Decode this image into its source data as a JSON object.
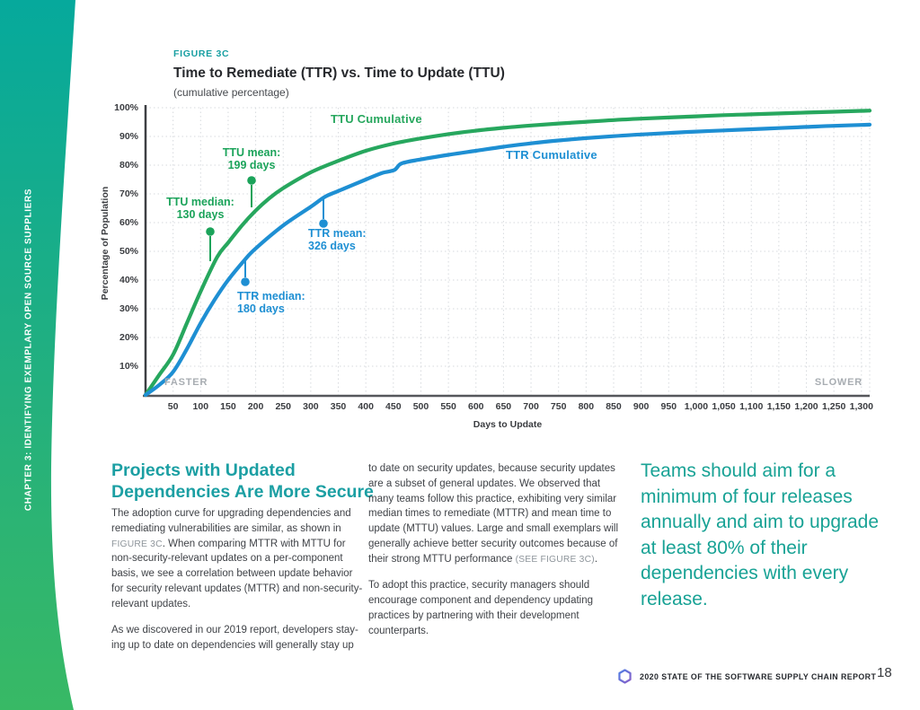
{
  "sidebar": {
    "chapter_label": "CHAPTER 3: IDENTIFYING EXEMPLARY OPEN SOURCE SUPPLIERS",
    "gradient_top": "#06a99c",
    "gradient_bottom": "#38b965"
  },
  "figure": {
    "eyebrow": "FIGURE 3C",
    "title": "Time to Remediate (TTR) vs. Time to Update (TTU)",
    "subtitle": "(cumulative percentage)"
  },
  "chart_data": {
    "type": "line",
    "title": "Time to Remediate (TTR) vs. Time to Update (TTU)",
    "subtitle": "(cumulative percentage)",
    "xlabel": "Days to Update",
    "ylabel": "Percentage of Population",
    "xlim": [
      0,
      1315
    ],
    "ylim": [
      0,
      100
    ],
    "grid": true,
    "x_ticks": [
      "50",
      "100",
      "150",
      "200",
      "250",
      "300",
      "350",
      "400",
      "450",
      "500",
      "550",
      "600",
      "650",
      "700",
      "750",
      "800",
      "850",
      "900",
      "950",
      "1,000",
      "1,050",
      "1,100",
      "1,150",
      "1,200",
      "1,250",
      "1,300"
    ],
    "y_ticks": [
      "10%",
      "20%",
      "30%",
      "40%",
      "50%",
      "60%",
      "70%",
      "80%",
      "90%",
      "100%"
    ],
    "corner_labels": {
      "left": "FASTER",
      "right": "SLOWER"
    },
    "series": [
      {
        "id": "ttu",
        "name": "TTU Cumulative",
        "color": "#27a75e",
        "points": [
          [
            0,
            0
          ],
          [
            25,
            7
          ],
          [
            50,
            14
          ],
          [
            75,
            25
          ],
          [
            100,
            36
          ],
          [
            130,
            48
          ],
          [
            150,
            53
          ],
          [
            175,
            59
          ],
          [
            199,
            64
          ],
          [
            225,
            68.5
          ],
          [
            250,
            72
          ],
          [
            300,
            77.5
          ],
          [
            350,
            81.5
          ],
          [
            400,
            85
          ],
          [
            450,
            87.5
          ],
          [
            500,
            89.3
          ],
          [
            550,
            90.8
          ],
          [
            600,
            92
          ],
          [
            650,
            93
          ],
          [
            700,
            93.8
          ],
          [
            750,
            94.5
          ],
          [
            800,
            95.1
          ],
          [
            850,
            95.7
          ],
          [
            900,
            96.2
          ],
          [
            950,
            96.6
          ],
          [
            1000,
            97
          ],
          [
            1050,
            97.4
          ],
          [
            1100,
            97.7
          ],
          [
            1150,
            98
          ],
          [
            1200,
            98.3
          ],
          [
            1250,
            98.6
          ],
          [
            1300,
            98.9
          ],
          [
            1315,
            99
          ]
        ]
      },
      {
        "id": "ttr",
        "name": "TTR Cumulative",
        "color": "#1e8fd3",
        "points": [
          [
            0,
            0
          ],
          [
            25,
            3.5
          ],
          [
            50,
            8
          ],
          [
            75,
            16
          ],
          [
            100,
            25
          ],
          [
            125,
            33
          ],
          [
            150,
            40
          ],
          [
            180,
            47
          ],
          [
            200,
            51
          ],
          [
            250,
            59
          ],
          [
            300,
            65.5
          ],
          [
            326,
            69
          ],
          [
            350,
            71
          ],
          [
            400,
            75
          ],
          [
            430,
            77.3
          ],
          [
            452,
            78.3
          ],
          [
            465,
            80.6
          ],
          [
            500,
            82
          ],
          [
            550,
            83.6
          ],
          [
            600,
            85
          ],
          [
            650,
            86.4
          ],
          [
            700,
            87.6
          ],
          [
            750,
            88.6
          ],
          [
            800,
            89.4
          ],
          [
            850,
            90.1
          ],
          [
            900,
            90.7
          ],
          [
            950,
            91.2
          ],
          [
            1000,
            91.7
          ],
          [
            1050,
            92.1
          ],
          [
            1100,
            92.5
          ],
          [
            1150,
            92.9
          ],
          [
            1200,
            93.3
          ],
          [
            1250,
            93.7
          ],
          [
            1300,
            94
          ],
          [
            1315,
            94.1
          ]
        ]
      }
    ],
    "annotations": [
      {
        "id": "ttu-mean",
        "series": "ttu",
        "color": "#1ba35a",
        "text": "TTU mean:\n199 days",
        "value_days": 199
      },
      {
        "id": "ttu-median",
        "series": "ttu",
        "color": "#1ba35a",
        "text": "TTU median:\n130 days",
        "value_days": 130
      },
      {
        "id": "ttr-mean",
        "series": "ttr",
        "color": "#1e8fd3",
        "text": "TTR mean:\n326 days",
        "value_days": 326
      },
      {
        "id": "ttr-median",
        "series": "ttr",
        "color": "#1e8fd3",
        "text": "TTR median:\n180 days",
        "value_days": 180
      }
    ]
  },
  "article": {
    "heading": "Projects with Updated Dependencies Are More Secure",
    "col1_p1": {
      "pre": "The adoption curve for upgrading dependencies and remediating vulnerabilities are similar, as shown in ",
      "ref": "FIGURE 3C",
      "post": ". When comparing MTTR with MTTU for non-security-relevant updates on a per-component basis, we see a correlation between update behavior for security relevant updates (MTTR) and non-security-relevant updates."
    },
    "col1_p2": "As we discovered in our 2019 report, developers stay-ing up to date on dependencies will generally stay up",
    "col2_p1": {
      "pre": "to date on security updates, because security updates are a subset of general updates. We observed that many teams follow this practice, exhibiting very similar median times to remediate (MTTR) and mean time to update (MTTU) values. Large and small exemplars will generally achieve better security outcomes because of their strong MTTU performance ",
      "ref": "(SEE FIGURE 3C)",
      "post": "."
    },
    "col2_p2": "To adopt this practice, security managers should encourage component and dependency updating practices by partnering with their development counterparts.",
    "pull_quote": "Teams should aim for a minimum of four releases annually and aim to upgrade at least 80% of their dependencies with every release."
  },
  "footer": {
    "report_title": "2020 STATE OF THE SOFTWARE SUPPLY CHAIN REPORT",
    "page_number": "18",
    "logo_color_start": "#4f7ee4",
    "logo_color_end": "#8a5fc8"
  }
}
